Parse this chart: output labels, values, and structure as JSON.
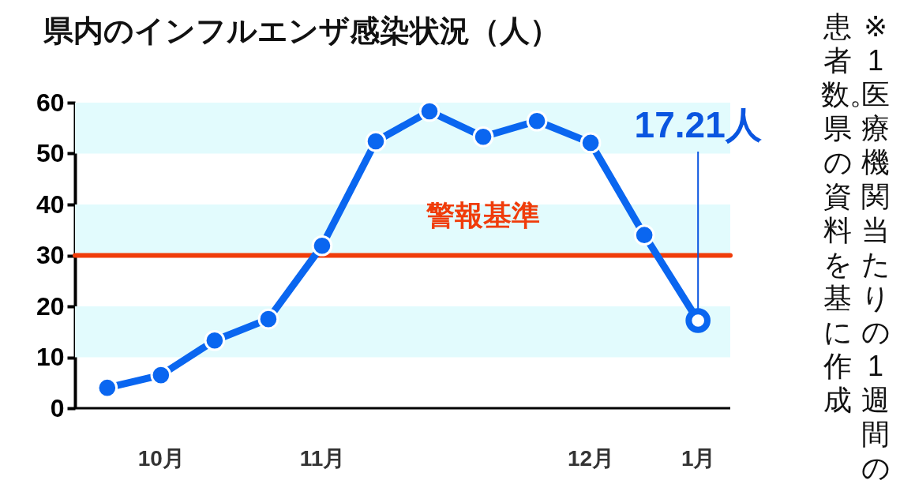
{
  "chart_data": {
    "type": "line",
    "title": "県内のインフルエンザ感染状況（人）",
    "categories": [
      null,
      "10月",
      null,
      null,
      "11月",
      null,
      null,
      null,
      null,
      "12月",
      null,
      "1月"
    ],
    "ylim": [
      0,
      60
    ],
    "yticks": [
      0,
      10,
      20,
      30,
      40,
      50,
      60
    ],
    "series": [
      {
        "color": "#0a66f0",
        "values": [
          4.0,
          6.5,
          13.3,
          17.5,
          31.9,
          52.4,
          58.3,
          53.3,
          56.4,
          52.1,
          34.0,
          17.21
        ]
      }
    ],
    "ref_lines": [
      {
        "axis": "y",
        "value": 30,
        "label": "警報基準",
        "color": "#f03c0a"
      }
    ],
    "bands": [
      {
        "axis": "y",
        "from": 10,
        "to": 20,
        "color": "#e2fbfd"
      },
      {
        "axis": "y",
        "from": 30,
        "to": 40,
        "color": "#e2fbfd"
      },
      {
        "axis": "y",
        "from": 50,
        "to": 60,
        "color": "#e2fbfd"
      }
    ],
    "annotations": [
      {
        "text": "17.21人",
        "x": "1月",
        "y": 17.21
      },
      "※1医療機関当たりの1週間の患者数。県の資料を基に作成"
    ],
    "marker": "circle",
    "line_style": "solid",
    "grid": false
  }
}
